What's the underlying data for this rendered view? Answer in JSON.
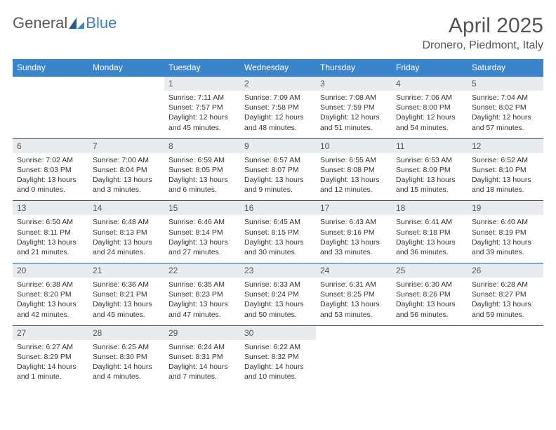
{
  "logo": {
    "text1": "General",
    "text2": "Blue"
  },
  "title": "April 2025",
  "location": "Dronero, Piedmont, Italy",
  "colors": {
    "header_bg": "#3a85c9",
    "week_border": "#2b5a8a",
    "daynum_bg": "#e9ecef",
    "logo_gray": "#5a5a5a",
    "logo_blue": "#3a7fc4"
  },
  "day_names": [
    "Sunday",
    "Monday",
    "Tuesday",
    "Wednesday",
    "Thursday",
    "Friday",
    "Saturday"
  ],
  "weeks": [
    [
      {
        "num": "",
        "sunrise": "",
        "sunset": "",
        "daylight": ""
      },
      {
        "num": "",
        "sunrise": "",
        "sunset": "",
        "daylight": ""
      },
      {
        "num": "1",
        "sunrise": "Sunrise: 7:11 AM",
        "sunset": "Sunset: 7:57 PM",
        "daylight": "Daylight: 12 hours and 45 minutes."
      },
      {
        "num": "2",
        "sunrise": "Sunrise: 7:09 AM",
        "sunset": "Sunset: 7:58 PM",
        "daylight": "Daylight: 12 hours and 48 minutes."
      },
      {
        "num": "3",
        "sunrise": "Sunrise: 7:08 AM",
        "sunset": "Sunset: 7:59 PM",
        "daylight": "Daylight: 12 hours and 51 minutes."
      },
      {
        "num": "4",
        "sunrise": "Sunrise: 7:06 AM",
        "sunset": "Sunset: 8:00 PM",
        "daylight": "Daylight: 12 hours and 54 minutes."
      },
      {
        "num": "5",
        "sunrise": "Sunrise: 7:04 AM",
        "sunset": "Sunset: 8:02 PM",
        "daylight": "Daylight: 12 hours and 57 minutes."
      }
    ],
    [
      {
        "num": "6",
        "sunrise": "Sunrise: 7:02 AM",
        "sunset": "Sunset: 8:03 PM",
        "daylight": "Daylight: 13 hours and 0 minutes."
      },
      {
        "num": "7",
        "sunrise": "Sunrise: 7:00 AM",
        "sunset": "Sunset: 8:04 PM",
        "daylight": "Daylight: 13 hours and 3 minutes."
      },
      {
        "num": "8",
        "sunrise": "Sunrise: 6:59 AM",
        "sunset": "Sunset: 8:05 PM",
        "daylight": "Daylight: 13 hours and 6 minutes."
      },
      {
        "num": "9",
        "sunrise": "Sunrise: 6:57 AM",
        "sunset": "Sunset: 8:07 PM",
        "daylight": "Daylight: 13 hours and 9 minutes."
      },
      {
        "num": "10",
        "sunrise": "Sunrise: 6:55 AM",
        "sunset": "Sunset: 8:08 PM",
        "daylight": "Daylight: 13 hours and 12 minutes."
      },
      {
        "num": "11",
        "sunrise": "Sunrise: 6:53 AM",
        "sunset": "Sunset: 8:09 PM",
        "daylight": "Daylight: 13 hours and 15 minutes."
      },
      {
        "num": "12",
        "sunrise": "Sunrise: 6:52 AM",
        "sunset": "Sunset: 8:10 PM",
        "daylight": "Daylight: 13 hours and 18 minutes."
      }
    ],
    [
      {
        "num": "13",
        "sunrise": "Sunrise: 6:50 AM",
        "sunset": "Sunset: 8:11 PM",
        "daylight": "Daylight: 13 hours and 21 minutes."
      },
      {
        "num": "14",
        "sunrise": "Sunrise: 6:48 AM",
        "sunset": "Sunset: 8:13 PM",
        "daylight": "Daylight: 13 hours and 24 minutes."
      },
      {
        "num": "15",
        "sunrise": "Sunrise: 6:46 AM",
        "sunset": "Sunset: 8:14 PM",
        "daylight": "Daylight: 13 hours and 27 minutes."
      },
      {
        "num": "16",
        "sunrise": "Sunrise: 6:45 AM",
        "sunset": "Sunset: 8:15 PM",
        "daylight": "Daylight: 13 hours and 30 minutes."
      },
      {
        "num": "17",
        "sunrise": "Sunrise: 6:43 AM",
        "sunset": "Sunset: 8:16 PM",
        "daylight": "Daylight: 13 hours and 33 minutes."
      },
      {
        "num": "18",
        "sunrise": "Sunrise: 6:41 AM",
        "sunset": "Sunset: 8:18 PM",
        "daylight": "Daylight: 13 hours and 36 minutes."
      },
      {
        "num": "19",
        "sunrise": "Sunrise: 6:40 AM",
        "sunset": "Sunset: 8:19 PM",
        "daylight": "Daylight: 13 hours and 39 minutes."
      }
    ],
    [
      {
        "num": "20",
        "sunrise": "Sunrise: 6:38 AM",
        "sunset": "Sunset: 8:20 PM",
        "daylight": "Daylight: 13 hours and 42 minutes."
      },
      {
        "num": "21",
        "sunrise": "Sunrise: 6:36 AM",
        "sunset": "Sunset: 8:21 PM",
        "daylight": "Daylight: 13 hours and 45 minutes."
      },
      {
        "num": "22",
        "sunrise": "Sunrise: 6:35 AM",
        "sunset": "Sunset: 8:23 PM",
        "daylight": "Daylight: 13 hours and 47 minutes."
      },
      {
        "num": "23",
        "sunrise": "Sunrise: 6:33 AM",
        "sunset": "Sunset: 8:24 PM",
        "daylight": "Daylight: 13 hours and 50 minutes."
      },
      {
        "num": "24",
        "sunrise": "Sunrise: 6:31 AM",
        "sunset": "Sunset: 8:25 PM",
        "daylight": "Daylight: 13 hours and 53 minutes."
      },
      {
        "num": "25",
        "sunrise": "Sunrise: 6:30 AM",
        "sunset": "Sunset: 8:26 PM",
        "daylight": "Daylight: 13 hours and 56 minutes."
      },
      {
        "num": "26",
        "sunrise": "Sunrise: 6:28 AM",
        "sunset": "Sunset: 8:27 PM",
        "daylight": "Daylight: 13 hours and 59 minutes."
      }
    ],
    [
      {
        "num": "27",
        "sunrise": "Sunrise: 6:27 AM",
        "sunset": "Sunset: 8:29 PM",
        "daylight": "Daylight: 14 hours and 1 minute."
      },
      {
        "num": "28",
        "sunrise": "Sunrise: 6:25 AM",
        "sunset": "Sunset: 8:30 PM",
        "daylight": "Daylight: 14 hours and 4 minutes."
      },
      {
        "num": "29",
        "sunrise": "Sunrise: 6:24 AM",
        "sunset": "Sunset: 8:31 PM",
        "daylight": "Daylight: 14 hours and 7 minutes."
      },
      {
        "num": "30",
        "sunrise": "Sunrise: 6:22 AM",
        "sunset": "Sunset: 8:32 PM",
        "daylight": "Daylight: 14 hours and 10 minutes."
      },
      {
        "num": "",
        "sunrise": "",
        "sunset": "",
        "daylight": ""
      },
      {
        "num": "",
        "sunrise": "",
        "sunset": "",
        "daylight": ""
      },
      {
        "num": "",
        "sunrise": "",
        "sunset": "",
        "daylight": ""
      }
    ]
  ]
}
